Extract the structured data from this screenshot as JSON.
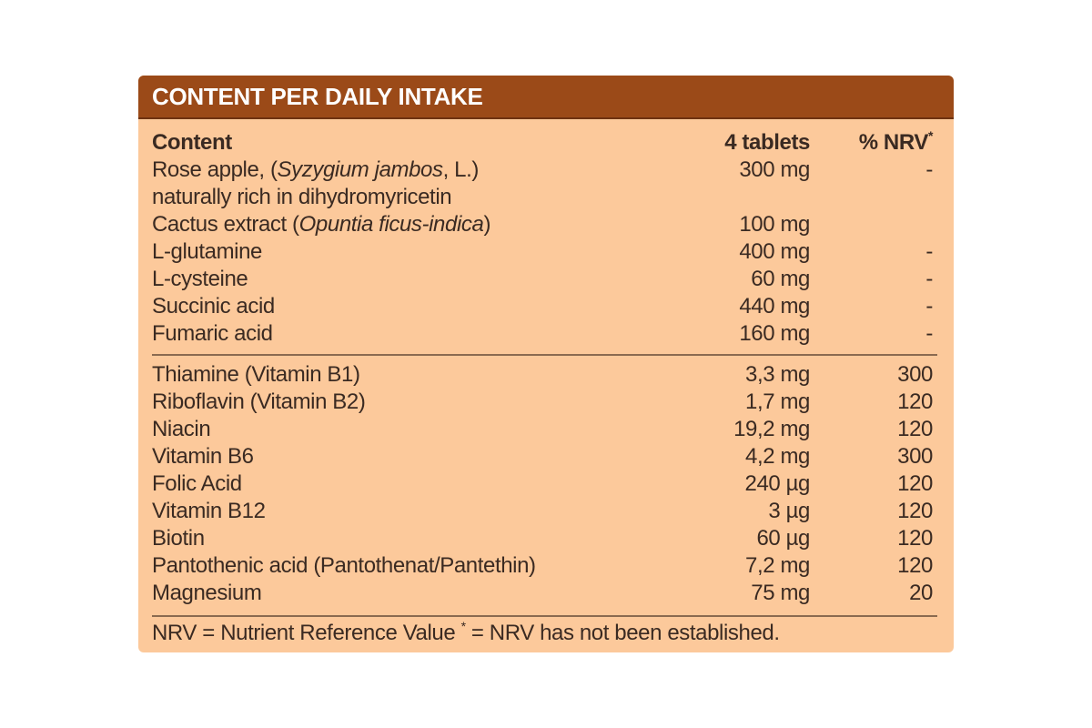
{
  "header": {
    "title": "CONTENT PER DAILY INTAKE"
  },
  "column_headers": {
    "content": "Content",
    "amount": "4 tablets",
    "nrv": [
      {
        "text": "% NRV"
      },
      {
        "text": "*",
        "sup": true
      }
    ]
  },
  "sections": [
    [
      {
        "name": [
          {
            "text": "Rose apple, ("
          },
          {
            "text": "Syzygium jambos",
            "italic": true
          },
          {
            "text": ", L.)"
          }
        ],
        "name_line2": "naturally rich in dihydromyricetin",
        "amount": "300 mg",
        "nrv": "-"
      },
      {
        "name": [
          {
            "text": "Cactus extract ("
          },
          {
            "text": "Opuntia ficus-indica",
            "italic": true
          },
          {
            "text": ")"
          }
        ],
        "amount": "100 mg"
      },
      {
        "name": [
          {
            "text": "L-glutamine"
          }
        ],
        "amount": "400 mg",
        "nrv": "-"
      },
      {
        "name": [
          {
            "text": "L-cysteine"
          }
        ],
        "amount": "60 mg",
        "nrv": "-"
      },
      {
        "name": [
          {
            "text": "Succinic acid"
          }
        ],
        "amount": "440 mg",
        "nrv": "-"
      },
      {
        "name": [
          {
            "text": "Fumaric acid"
          }
        ],
        "amount": "160 mg",
        "nrv": "-"
      }
    ],
    [
      {
        "name": [
          {
            "text": "Thiamine (Vitamin B1)"
          }
        ],
        "amount": "3,3 mg",
        "nrv": "300"
      },
      {
        "name": [
          {
            "text": "Riboflavin (Vitamin B2)"
          }
        ],
        "amount": "1,7 mg",
        "nrv": "120"
      },
      {
        "name": [
          {
            "text": "Niacin"
          }
        ],
        "amount": "19,2 mg",
        "nrv": "120"
      },
      {
        "name": [
          {
            "text": "Vitamin B6"
          }
        ],
        "amount": "4,2 mg",
        "nrv": "300"
      },
      {
        "name": [
          {
            "text": "Folic Acid"
          }
        ],
        "amount": "240 µg",
        "nrv": "120"
      },
      {
        "name": [
          {
            "text": "Vitamin B12"
          }
        ],
        "amount": "3 µg",
        "nrv": "120"
      },
      {
        "name": [
          {
            "text": "Biotin"
          }
        ],
        "amount": "60 µg",
        "nrv": "120"
      },
      {
        "name": [
          {
            "text": "Pantothenic acid (Pantothenat/Pantethin)"
          }
        ],
        "amount": "7,2 mg",
        "nrv": "120"
      },
      {
        "name": [
          {
            "text": "Magnesium"
          }
        ],
        "amount": "75 mg",
        "nrv": "20"
      }
    ]
  ],
  "footer": [
    {
      "text": "NRV = Nutrient Reference Value "
    },
    {
      "text": "*",
      "sup": true
    },
    {
      "text": " = NRV has not been established."
    }
  ]
}
